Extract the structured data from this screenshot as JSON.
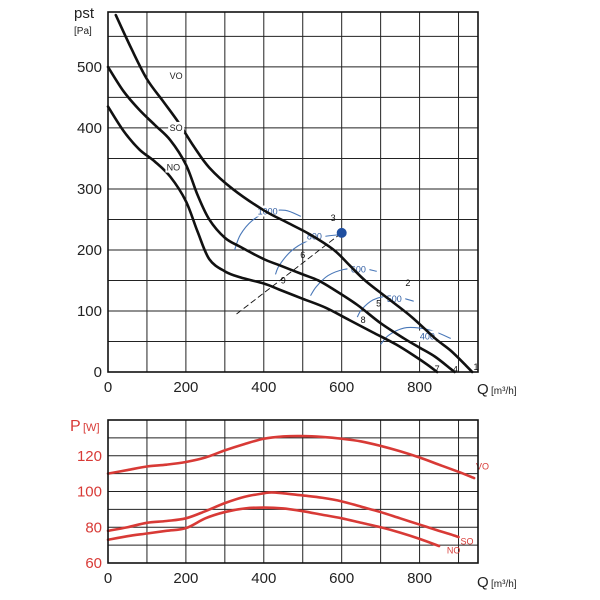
{
  "colors": {
    "pressure_curve": "#111111",
    "power_curve": "#d83a36",
    "iso_curve": "#4a78b8",
    "operating_point": "#1f4fa0",
    "grid": "#222222",
    "frame": "#111111"
  },
  "chart_data": [
    {
      "type": "line",
      "name": "static-pressure",
      "ylabel_top": "pst",
      "ylabel_unit": "[Pa]",
      "xlabel": "Q",
      "xlabel_unit": "[m³/h]",
      "xlim": [
        0,
        950
      ],
      "ylim": [
        0,
        590
      ],
      "x_ticks": [
        0,
        200,
        400,
        600,
        800
      ],
      "y_ticks": [
        0,
        100,
        200,
        300,
        400,
        500
      ],
      "x_grid_step": 100,
      "y_grid_step": 50,
      "series": [
        {
          "name": "VO",
          "x": [
            20,
            60,
            100,
            140,
            180,
            220,
            260,
            320,
            400,
            460,
            520,
            580,
            620,
            660,
            720,
            780,
            840,
            880,
            920,
            935
          ],
          "y": [
            585,
            530,
            480,
            445,
            410,
            370,
            335,
            300,
            265,
            245,
            225,
            200,
            175,
            150,
            120,
            90,
            55,
            35,
            10,
            0
          ]
        },
        {
          "name": "SO",
          "x": [
            0,
            40,
            80,
            120,
            160,
            200,
            230,
            260,
            300,
            340,
            400,
            440,
            500,
            540,
            580,
            640,
            700,
            760,
            800,
            840,
            880,
            890
          ],
          "y": [
            500,
            460,
            430,
            405,
            380,
            340,
            290,
            250,
            220,
            205,
            185,
            175,
            160,
            150,
            135,
            110,
            80,
            55,
            40,
            25,
            5,
            0
          ]
        },
        {
          "name": "NO",
          "x": [
            0,
            40,
            80,
            120,
            160,
            200,
            230,
            260,
            300,
            340,
            400,
            440,
            500,
            560,
            620,
            680,
            740,
            790,
            820,
            845
          ],
          "y": [
            435,
            395,
            365,
            345,
            320,
            280,
            230,
            185,
            165,
            155,
            145,
            135,
            120,
            105,
            85,
            65,
            45,
            25,
            12,
            0
          ]
        }
      ],
      "curve_labels": [
        {
          "text": "VO",
          "x": 175,
          "y": 485
        },
        {
          "text": "SO",
          "x": 175,
          "y": 400
        },
        {
          "text": "NO",
          "x": 168,
          "y": 335
        }
      ],
      "iso_curves": [
        {
          "label": "1000",
          "label_x": 410,
          "label_y": 263,
          "x": [
            325,
            340,
            370,
            410,
            455,
            495
          ],
          "y": [
            200,
            225,
            248,
            262,
            265,
            255
          ]
        },
        {
          "label": "800",
          "label_x": 530,
          "label_y": 222,
          "x": [
            430,
            440,
            470,
            510,
            555,
            595
          ],
          "y": [
            160,
            175,
            198,
            214,
            222,
            225
          ]
        },
        {
          "label": "600",
          "label_x": 643,
          "label_y": 168,
          "x": [
            520,
            535,
            565,
            605,
            650,
            690
          ],
          "y": [
            125,
            140,
            158,
            168,
            170,
            165
          ]
        },
        {
          "label": "500",
          "label_x": 735,
          "label_y": 120,
          "x": [
            640,
            652,
            680,
            715,
            750,
            785
          ],
          "y": [
            90,
            103,
            118,
            124,
            122,
            116
          ]
        },
        {
          "label": "400",
          "label_x": 820,
          "label_y": 58,
          "x": [
            700,
            720,
            760,
            800,
            840,
            880
          ],
          "y": [
            45,
            60,
            72,
            72,
            66,
            55
          ]
        }
      ],
      "system_line": {
        "x": [
          330,
          600
        ],
        "y": [
          95,
          228
        ]
      },
      "point_labels": [
        {
          "text": "1",
          "x": 945,
          "y": 8
        },
        {
          "text": "2",
          "x": 770,
          "y": 146
        },
        {
          "text": "3",
          "x": 578,
          "y": 252
        },
        {
          "text": "4",
          "x": 892,
          "y": 4
        },
        {
          "text": "5",
          "x": 695,
          "y": 112
        },
        {
          "text": "6",
          "x": 500,
          "y": 192
        },
        {
          "text": "7",
          "x": 845,
          "y": 5
        },
        {
          "text": "8",
          "x": 655,
          "y": 85
        },
        {
          "text": "9",
          "x": 450,
          "y": 150
        }
      ],
      "operating_point": {
        "x": 600,
        "y": 228
      }
    },
    {
      "type": "line",
      "name": "power",
      "ylabel": "P",
      "ylabel_unit": "[W]",
      "xlabel": "Q",
      "xlabel_unit": "[m³/h]",
      "xlim": [
        0,
        950
      ],
      "ylim": [
        60,
        140
      ],
      "x_ticks": [
        0,
        200,
        400,
        600,
        800
      ],
      "y_ticks": [
        60,
        80,
        100,
        120
      ],
      "x_grid_step": 100,
      "y_grid_step": 10,
      "series": [
        {
          "name": "VO",
          "x": [
            0,
            50,
            100,
            150,
            200,
            250,
            300,
            350,
            400,
            450,
            500,
            550,
            600,
            650,
            700,
            750,
            800,
            850,
            900,
            940
          ],
          "y": [
            110,
            112,
            114,
            115,
            116.5,
            119,
            123,
            126.5,
            129.5,
            130.8,
            131,
            130.5,
            129.5,
            128,
            125.5,
            122.5,
            119,
            115,
            111,
            107.5
          ]
        },
        {
          "name": "SO",
          "x": [
            0,
            50,
            100,
            150,
            200,
            250,
            300,
            350,
            400,
            420,
            450,
            500,
            550,
            600,
            650,
            700,
            750,
            800,
            850,
            880,
            900
          ],
          "y": [
            78,
            80,
            82.5,
            83.5,
            85,
            89,
            93.5,
            97,
            99,
            99.5,
            99,
            97.8,
            96.5,
            94.5,
            91.5,
            88.5,
            85,
            81.5,
            78,
            76,
            74.5
          ]
        },
        {
          "name": "NO",
          "x": [
            0,
            50,
            100,
            150,
            200,
            250,
            300,
            350,
            400,
            450,
            500,
            550,
            600,
            650,
            700,
            750,
            800,
            850
          ],
          "y": [
            73,
            75,
            76.5,
            78,
            79.5,
            85,
            88.5,
            90.5,
            91,
            90.5,
            89,
            87,
            85,
            82.5,
            80,
            77,
            73.5,
            69.5
          ]
        }
      ],
      "curve_labels": [
        {
          "text": "VO",
          "x": 945,
          "y": 114
        },
        {
          "text": "SO",
          "x": 905,
          "y": 72
        },
        {
          "text": "NO",
          "x": 870,
          "y": 67
        }
      ]
    }
  ]
}
